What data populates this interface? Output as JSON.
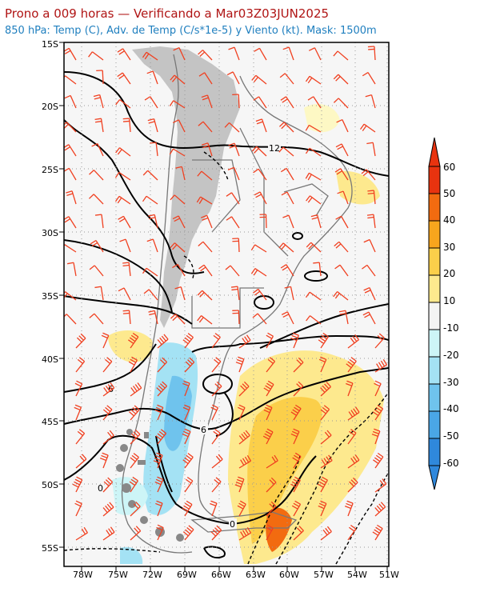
{
  "header": {
    "title": "Prono a 009 horas — Verificando a Mar03Z03JUN2025",
    "subtitle": "850 hPa: Temp (C), Adv. de Temp (C/s*1e-5) y Viento (kt). Mask: 1500m"
  },
  "map": {
    "lat_labels": [
      "15S",
      "20S",
      "25S",
      "30S",
      "35S",
      "40S",
      "45S",
      "50S",
      "55S"
    ],
    "lon_labels": [
      "78W",
      "75W",
      "72W",
      "69W",
      "66W",
      "63W",
      "60W",
      "57W",
      "54W",
      "51W"
    ],
    "contour_labels": [
      "12",
      "6",
      "6",
      "0",
      "0"
    ],
    "wind_barb_color": "#f04020"
  },
  "colorbar": {
    "labels": [
      "60",
      "50",
      "40",
      "30",
      "20",
      "10",
      "-10",
      "-20",
      "-30",
      "-40",
      "-50",
      "-60"
    ],
    "colors": [
      "#e8330f",
      "#f26b10",
      "#f7a51d",
      "#fbcf4a",
      "#fde98e",
      "#fdf8c4",
      "#f4f4f4",
      "#cdf5f7",
      "#a4e2f4",
      "#6fc3ed",
      "#4aa6e6",
      "#2f88dc"
    ]
  }
}
